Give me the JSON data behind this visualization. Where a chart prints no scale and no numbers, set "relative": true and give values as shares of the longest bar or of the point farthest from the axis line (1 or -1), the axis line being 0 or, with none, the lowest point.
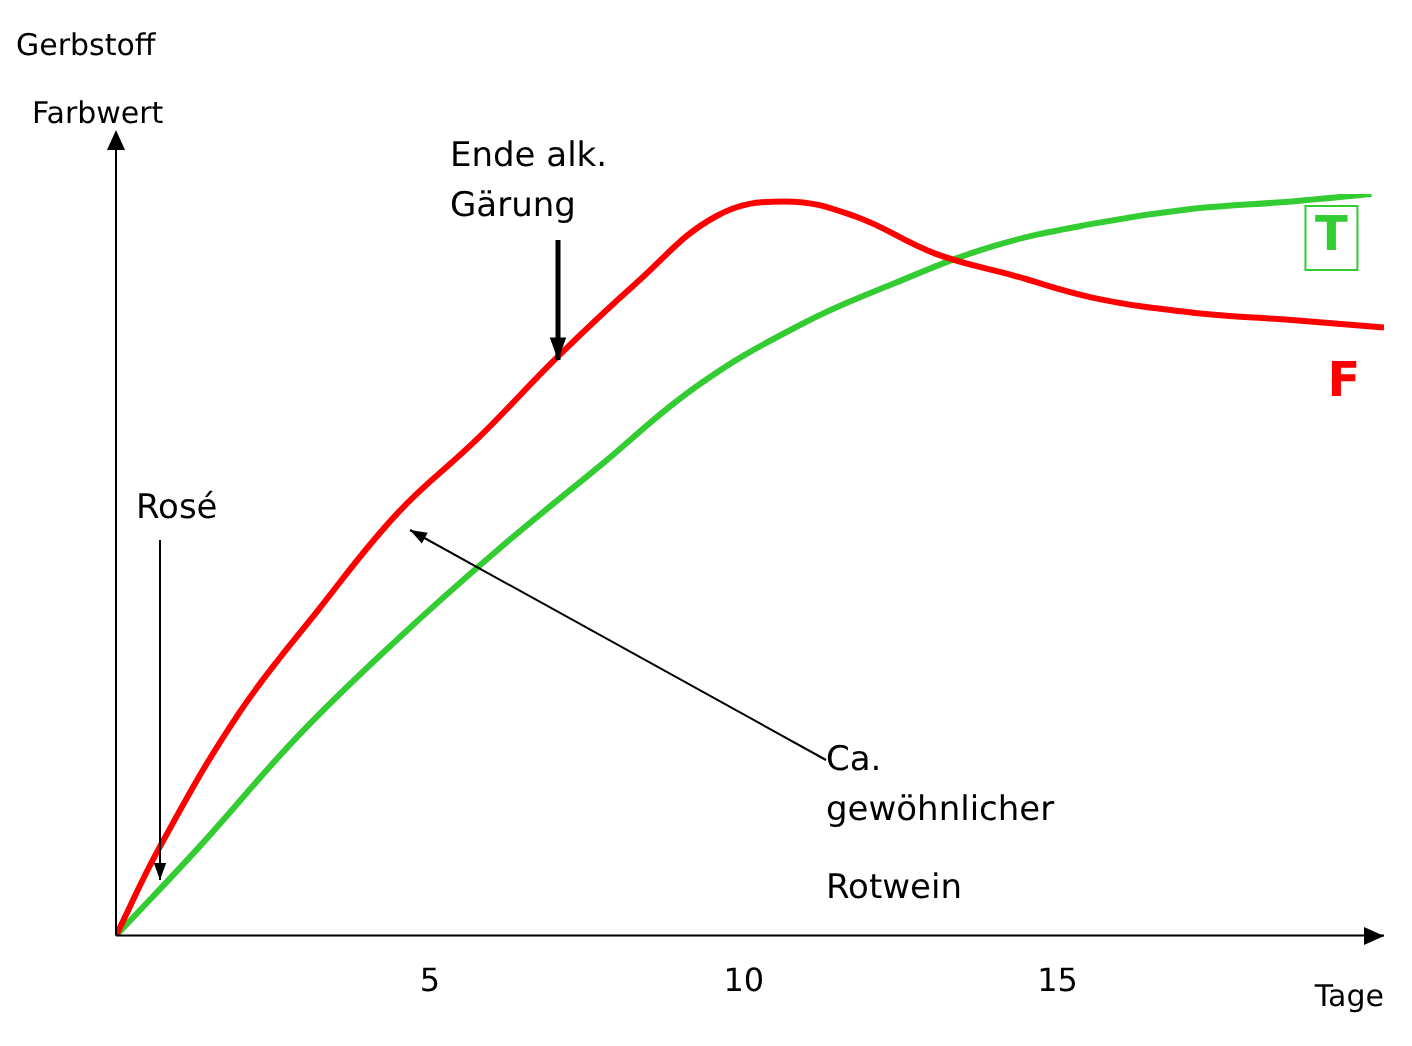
{
  "chart_data": {
    "type": "line",
    "relative": true,
    "xlabel": "Tage",
    "ylabel": "Gerbstoff Farbwert",
    "xlim": [
      0,
      20.2
    ],
    "xticks": [
      5,
      10,
      15
    ],
    "grid": false,
    "legend": false,
    "marker": "none",
    "line_style": "solid",
    "series": [
      {
        "name": "F",
        "color": "#ff0000",
        "x": [
          0,
          0.7,
          1.96,
          3.23,
          4.49,
          5.76,
          7.03,
          8.29,
          9.56,
          10.66,
          11.77,
          13.04,
          14.3,
          15.57,
          17.15,
          18.73,
          20.2
        ],
        "values": [
          0,
          0.12,
          0.3,
          0.44,
          0.57,
          0.67,
          0.78,
          0.88,
          0.97,
          0.99,
          0.97,
          0.92,
          0.89,
          0.86,
          0.84,
          0.83,
          0.82
        ]
      },
      {
        "name": "T",
        "color": "#33cc33",
        "x": [
          0,
          1.33,
          2.91,
          4.49,
          6.08,
          7.66,
          9.24,
          10.82,
          12.41,
          13.99,
          15.57,
          17.15,
          18.73,
          20.0
        ],
        "values": [
          0,
          0.12,
          0.27,
          0.4,
          0.52,
          0.63,
          0.74,
          0.82,
          0.88,
          0.93,
          0.96,
          0.98,
          0.99,
          1
        ]
      }
    ],
    "annotations": [
      "Ende alk.\nGärung",
      "Rosé",
      "Ca.\ngewöhnlicher\nRotwein"
    ]
  }
}
